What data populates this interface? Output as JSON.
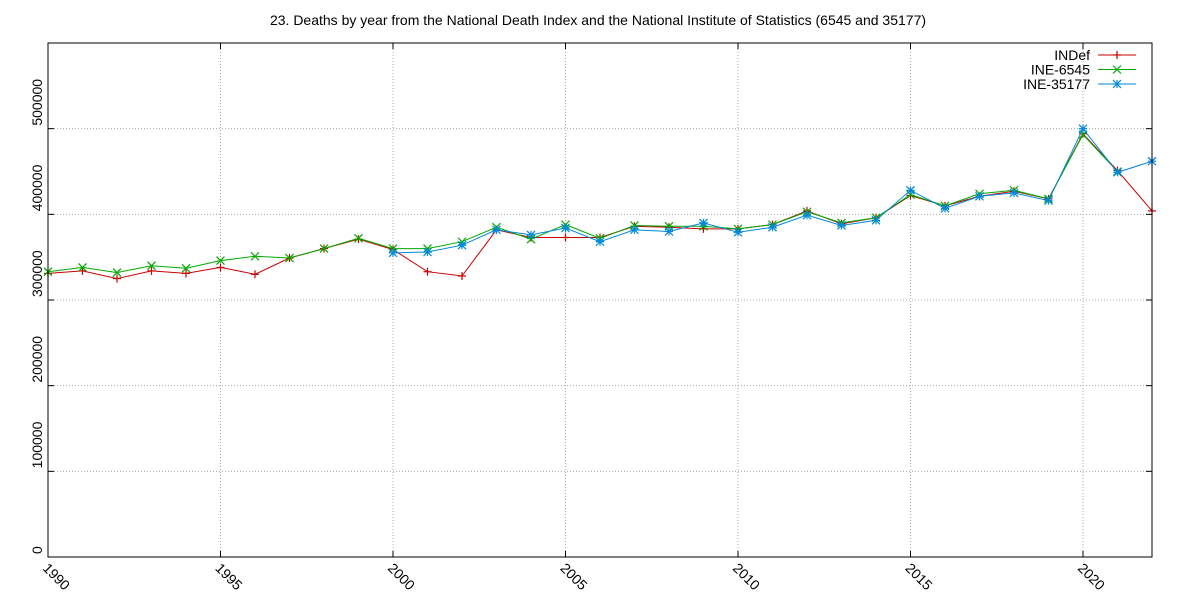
{
  "chart_data": {
    "type": "line",
    "title": "23. Deaths by year from the National Death Index and the National Institute of Statistics (6545 and 35177)",
    "xlabel": "",
    "ylabel": "",
    "xlim": [
      1990,
      2022
    ],
    "ylim": [
      0,
      600000
    ],
    "x_ticks": [
      1990,
      1995,
      2000,
      2005,
      2010,
      2015,
      2020
    ],
    "x_tick_labels": [
      "1990",
      "1995",
      "2000",
      "2005",
      "2010",
      "2015",
      "2020"
    ],
    "y_ticks": [
      0,
      100000,
      200000,
      300000,
      400000,
      500000
    ],
    "y_tick_labels": [
      "0",
      "100000",
      "200000",
      "300000",
      "400000",
      "500000"
    ],
    "grid": true,
    "legend_position": "top-right",
    "series": [
      {
        "name": "INDef",
        "color": "#cc0000",
        "marker": "plus",
        "x": [
          1990,
          1991,
          1992,
          1993,
          1994,
          1995,
          1996,
          1997,
          1998,
          1999,
          2000,
          2001,
          2002,
          2003,
          2004,
          2005,
          2006,
          2007,
          2008,
          2009,
          2010,
          2011,
          2012,
          2013,
          2014,
          2015,
          2016,
          2017,
          2018,
          2019,
          2020,
          2021,
          2022
        ],
        "y": [
          331000,
          334000,
          325000,
          334000,
          331000,
          338000,
          330000,
          349000,
          360000,
          371000,
          359000,
          333000,
          328000,
          382000,
          373000,
          373000,
          373000,
          386000,
          385000,
          383000,
          383000,
          388000,
          404000,
          389000,
          396000,
          422000,
          410000,
          421000,
          427000,
          418000,
          494000,
          451000,
          404000
        ]
      },
      {
        "name": "INE-6545",
        "color": "#00aa00",
        "marker": "x",
        "x": [
          1990,
          1991,
          1992,
          1993,
          1994,
          1995,
          1996,
          1997,
          1998,
          1999,
          2000,
          2001,
          2002,
          2003,
          2004,
          2005,
          2006,
          2007,
          2008,
          2009,
          2010,
          2011,
          2012,
          2013,
          2014,
          2015,
          2016,
          2017,
          2018,
          2019,
          2020,
          2021
        ],
        "y": [
          333000,
          338000,
          332000,
          340000,
          337000,
          346000,
          351000,
          349000,
          360000,
          372000,
          360000,
          360000,
          368000,
          385000,
          371000,
          388000,
          372000,
          387000,
          386000,
          386000,
          383000,
          388000,
          403000,
          390000,
          396000,
          423000,
          410000,
          424000,
          428000,
          418000,
          493000,
          450000
        ]
      },
      {
        "name": "INE-35177",
        "color": "#0088dd",
        "marker": "star",
        "x": [
          2000,
          2001,
          2002,
          2003,
          2004,
          2005,
          2006,
          2007,
          2008,
          2009,
          2010,
          2011,
          2012,
          2013,
          2014,
          2015,
          2016,
          2017,
          2018,
          2019,
          2020,
          2021,
          2022
        ],
        "y": [
          355000,
          356000,
          364000,
          382000,
          376000,
          384000,
          368000,
          382000,
          380000,
          390000,
          379000,
          385000,
          399000,
          387000,
          393000,
          428000,
          407000,
          421000,
          425000,
          416000,
          500000,
          449000,
          462000
        ]
      }
    ]
  }
}
